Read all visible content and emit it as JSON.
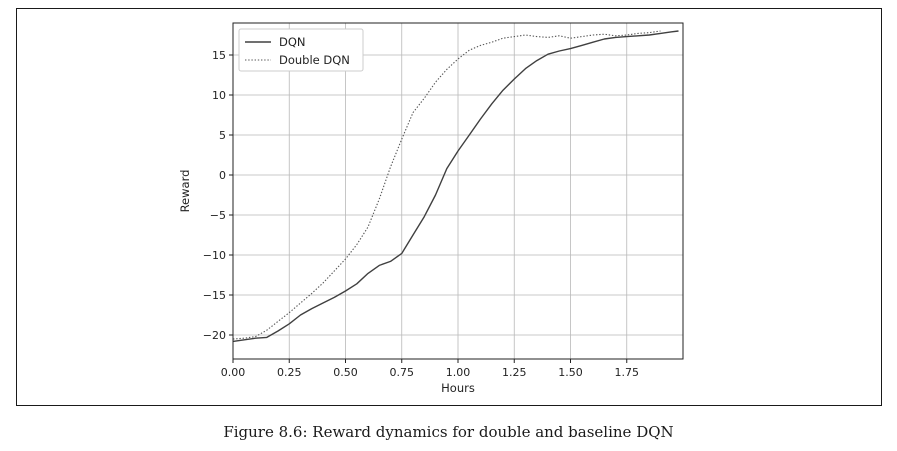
{
  "figure": {
    "caption": "Figure 8.6: Reward dynamics for double and baseline DQN"
  },
  "chart_data": {
    "type": "line",
    "title": "",
    "xlabel": "Hours",
    "ylabel": "Reward",
    "xlim": [
      0.0,
      2.0
    ],
    "ylim": [
      -23,
      19
    ],
    "xticks": [
      0.0,
      0.25,
      0.5,
      0.75,
      1.0,
      1.25,
      1.5,
      1.75
    ],
    "xtick_labels": [
      "0.00",
      "0.25",
      "0.50",
      "0.75",
      "1.00",
      "1.25",
      "1.50",
      "1.75"
    ],
    "yticks": [
      -20,
      -15,
      -10,
      -5,
      0,
      5,
      10,
      15
    ],
    "ytick_labels": [
      "−20",
      "−15",
      "−10",
      "−5",
      "0",
      "5",
      "10",
      "15"
    ],
    "grid": true,
    "legend_position": "top-left",
    "series": [
      {
        "name": "DQN",
        "style": "solid",
        "color": "#404040",
        "x": [
          0.0,
          0.05,
          0.1,
          0.15,
          0.2,
          0.25,
          0.3,
          0.35,
          0.4,
          0.45,
          0.5,
          0.55,
          0.6,
          0.65,
          0.7,
          0.75,
          0.8,
          0.85,
          0.9,
          0.95,
          1.0,
          1.05,
          1.1,
          1.15,
          1.2,
          1.25,
          1.3,
          1.35,
          1.4,
          1.45,
          1.5,
          1.55,
          1.6,
          1.65,
          1.7,
          1.75,
          1.8,
          1.85,
          1.9,
          1.95,
          1.98
        ],
        "y": [
          -20.8,
          -20.6,
          -20.4,
          -20.3,
          -19.5,
          -18.6,
          -17.5,
          -16.7,
          -16.0,
          -15.3,
          -14.5,
          -13.6,
          -12.3,
          -11.3,
          -10.8,
          -9.8,
          -7.5,
          -5.2,
          -2.5,
          0.8,
          3.0,
          5.0,
          7.0,
          8.9,
          10.6,
          12.0,
          13.3,
          14.3,
          15.1,
          15.5,
          15.8,
          16.2,
          16.6,
          17.0,
          17.2,
          17.3,
          17.4,
          17.5,
          17.7,
          17.9,
          18.0
        ]
      },
      {
        "name": "Double DQN",
        "style": "dotted",
        "color": "#555555",
        "x": [
          0.0,
          0.05,
          0.1,
          0.15,
          0.2,
          0.25,
          0.3,
          0.35,
          0.4,
          0.45,
          0.5,
          0.55,
          0.6,
          0.65,
          0.7,
          0.75,
          0.8,
          0.85,
          0.9,
          0.95,
          1.0,
          1.05,
          1.1,
          1.15,
          1.2,
          1.25,
          1.3,
          1.35,
          1.4,
          1.45,
          1.5,
          1.55,
          1.6,
          1.65,
          1.7,
          1.75,
          1.8,
          1.85,
          1.9
        ],
        "y": [
          -20.5,
          -20.4,
          -20.2,
          -19.4,
          -18.3,
          -17.2,
          -16.0,
          -14.8,
          -13.5,
          -12.0,
          -10.5,
          -8.7,
          -6.5,
          -3.0,
          1.0,
          4.5,
          7.8,
          9.6,
          11.6,
          13.2,
          14.5,
          15.6,
          16.2,
          16.6,
          17.1,
          17.3,
          17.5,
          17.3,
          17.2,
          17.4,
          17.1,
          17.3,
          17.5,
          17.6,
          17.4,
          17.5,
          17.7,
          17.8,
          18.0
        ]
      }
    ]
  }
}
